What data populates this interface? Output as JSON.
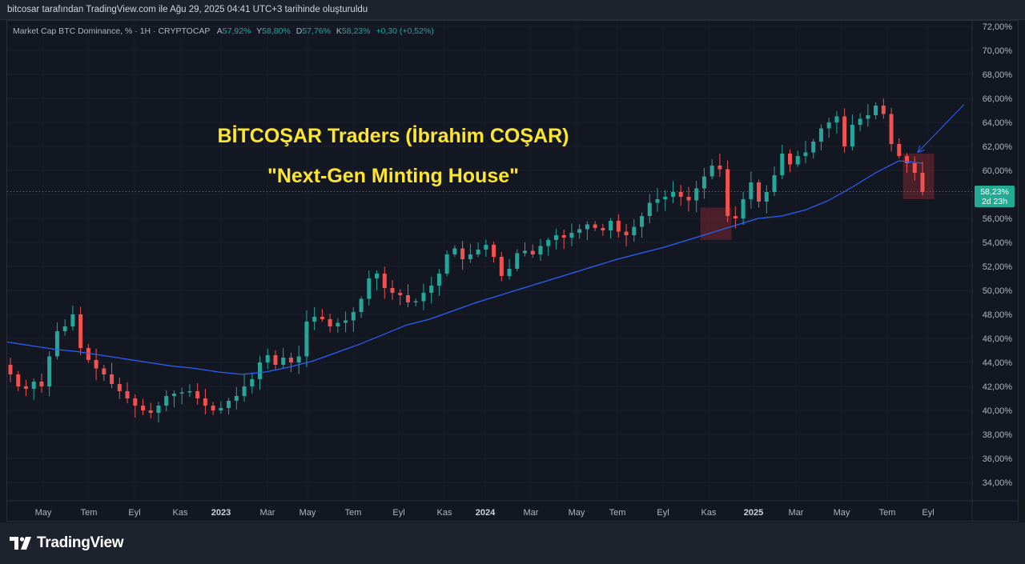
{
  "header": {
    "created_by": "bitcosar tarafından TradingView.com ile Ağu 29, 2025 04:41 UTC+3 tarihinde oluşturuldu"
  },
  "legend": {
    "symbol": "Market Cap BTC Dominance, % · 1H · CRYPTOCAP",
    "open_label": "A",
    "open": "57,92%",
    "high_label": "Y",
    "high": "58,80%",
    "low_label": "D",
    "low": "57,76%",
    "close_label": "K",
    "close": "58,23%",
    "change": "+0,30 (+0,52%)"
  },
  "annotation": {
    "title": "BİTCOŞAR Traders (İbrahim COŞAR)",
    "subtitle": "\"Next-Gen Minting House\""
  },
  "price_badge": {
    "price": "58,23%",
    "countdown": "2d 23h"
  },
  "brand": {
    "name": "TradingView"
  },
  "colors": {
    "background": "#131722",
    "up": "#26a69a",
    "down": "#ef5350",
    "ma": "#2962ff",
    "annotation": "#ffe62e",
    "badge": "#22ab94"
  },
  "chart_data": {
    "type": "candlestick",
    "title": "",
    "ylim": [
      33,
      72.5
    ],
    "yticks": [
      "34,00%",
      "36,00%",
      "38,00%",
      "40,00%",
      "42,00%",
      "44,00%",
      "46,00%",
      "48,00%",
      "50,00%",
      "52,00%",
      "54,00%",
      "56,00%",
      "58,00%",
      "60,00%",
      "62,00%",
      "64,00%",
      "66,00%",
      "68,00%",
      "70,00%",
      "72,00%"
    ],
    "ytick_values": [
      34,
      36,
      38,
      40,
      42,
      44,
      46,
      48,
      50,
      52,
      54,
      56,
      58,
      60,
      62,
      64,
      66,
      68,
      70,
      72
    ],
    "xticks": [
      "May",
      "Tem",
      "Eyl",
      "Kas",
      "2023",
      "Mar",
      "May",
      "Tem",
      "Eyl",
      "Kas",
      "2024",
      "Mar",
      "May",
      "Tem",
      "Eyl",
      "Kas",
      "2025",
      "Mar",
      "May",
      "Tem",
      "Eyl"
    ],
    "xtick_bold": [
      "2023",
      "2024",
      "2025"
    ],
    "current_price": 58.23,
    "close_series": [
      43.0,
      42.0,
      41.8,
      42.4,
      42.0,
      44.5,
      46.6,
      47.0,
      48.0,
      45.2,
      44.2,
      43.5,
      43.0,
      42.2,
      41.6,
      41.0,
      40.4,
      40.0,
      39.8,
      40.4,
      41.2,
      41.4,
      41.5,
      41.6,
      41.0,
      40.4,
      40.0,
      40.2,
      40.8,
      41.2,
      42.0,
      42.6,
      44.0,
      44.6,
      43.8,
      44.4,
      44.0,
      44.5,
      47.4,
      47.8,
      47.6,
      47.0,
      47.3,
      47.5,
      48.2,
      49.3,
      51.0,
      51.4,
      50.2,
      49.8,
      49.6,
      49.0,
      49.1,
      49.8,
      50.4,
      51.4,
      53.0,
      53.5,
      52.6,
      53.0,
      53.4,
      53.8,
      52.8,
      51.2,
      51.8,
      53.1,
      53.3,
      53.0,
      53.7,
      54.2,
      54.6,
      54.4,
      54.8,
      55.1,
      55.5,
      55.2,
      55.0,
      55.8,
      54.9,
      54.6,
      55.3,
      56.2,
      57.3,
      57.6,
      57.8,
      58.2,
      57.8,
      57.5,
      58.5,
      59.5,
      60.4,
      60.1,
      56.2,
      56.0,
      57.6,
      59.0,
      57.4,
      58.2,
      59.6,
      61.4,
      60.5,
      61.2,
      61.5,
      62.4,
      63.5,
      64.0,
      64.5,
      62.0,
      63.8,
      64.3,
      64.6,
      65.4,
      64.7,
      62.2,
      61.2,
      60.6,
      59.8,
      58.2
    ],
    "moving_average": {
      "visible": true,
      "values": [
        45.7,
        45.4,
        45.1,
        44.9,
        44.6,
        44.3,
        44.0,
        43.7,
        43.5,
        43.2,
        43.0,
        43.2,
        43.6,
        44.1,
        44.8,
        45.5,
        46.3,
        47.1,
        47.6,
        48.3,
        49.0,
        49.6,
        50.2,
        50.8,
        51.4,
        52.0,
        52.6,
        53.1,
        53.6,
        54.2,
        54.8,
        55.4,
        56.0,
        56.2,
        56.7,
        57.5,
        58.6,
        59.8,
        60.8,
        60.6
      ]
    },
    "highlights": [
      {
        "from_index": 89,
        "to_index": 92,
        "range": [
          54.2,
          56.9
        ]
      },
      {
        "from_index": 115,
        "to_index": 118,
        "range": [
          57.6,
          61.4
        ]
      }
    ],
    "arrow": {
      "from_value": 65.5,
      "to_value": 61.5
    }
  }
}
